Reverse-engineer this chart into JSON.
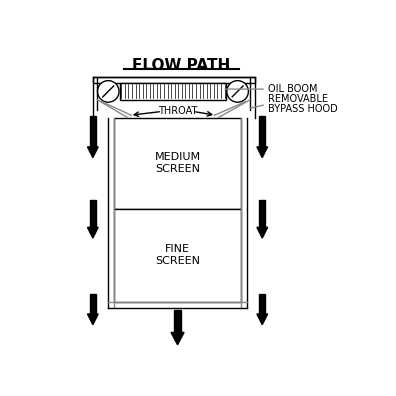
{
  "title": "FLOW PATH",
  "bg_color": "#ffffff",
  "line_color": "#000000",
  "gray_color": "#888888",
  "arrow_color": "#111111",
  "labels": {
    "oil_boom": "OIL BOOM",
    "bypass_hood_line1": "REMOVABLE",
    "bypass_hood_line2": "BYPASS HOOD",
    "throat": "THROAT",
    "medium_screen": "MEDIUM\nSCREEN",
    "fine_screen": "FINE\nSCREEN"
  },
  "font_size_title": 11,
  "font_size_label": 7
}
